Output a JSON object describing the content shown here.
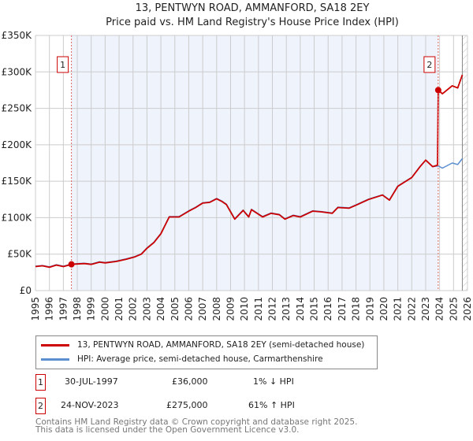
{
  "chart_data": {
    "type": "line",
    "title": "13, PENTWYN ROAD, AMMANFORD, SA18 2EY",
    "subtitle": "Price paid vs. HM Land Registry's House Price Index (HPI)",
    "xlabel": "",
    "ylabel": "",
    "xlim": [
      1995,
      2026
    ],
    "ylim": [
      0,
      350000
    ],
    "grid": true,
    "x_ticks": [
      "1995",
      "1996",
      "1997",
      "1998",
      "1999",
      "2000",
      "2001",
      "2002",
      "2003",
      "2004",
      "2005",
      "2006",
      "2007",
      "2008",
      "2009",
      "2010",
      "2011",
      "2012",
      "2013",
      "2014",
      "2015",
      "2016",
      "2017",
      "2018",
      "2019",
      "2020",
      "2021",
      "2022",
      "2023",
      "2024",
      "2025",
      "2026"
    ],
    "y_ticks": [
      {
        "v": 0,
        "label": "£0"
      },
      {
        "v": 50000,
        "label": "£50K"
      },
      {
        "v": 100000,
        "label": "£100K"
      },
      {
        "v": 150000,
        "label": "£150K"
      },
      {
        "v": 200000,
        "label": "£200K"
      },
      {
        "v": 250000,
        "label": "£250K"
      },
      {
        "v": 300000,
        "label": "£300K"
      },
      {
        "v": 350000,
        "label": "£350K"
      }
    ],
    "colors": {
      "property": "#cc0000",
      "hpi": "#5b8fd0",
      "shade": "#eef3fc",
      "grid": "#cccccc"
    },
    "shaded_range": [
      1997.58,
      2023.9
    ],
    "hatched_from": 2025.63,
    "series": [
      {
        "name": "13, PENTWYN ROAD, AMMANFORD, SA18 2EY (semi-detached house)",
        "color": "#cc0000",
        "x": [
          1995,
          1995.5,
          1996,
          1996.5,
          1997,
          1997.58,
          1998,
          1998.5,
          1999,
          1999.6,
          2000,
          2000.8,
          2001.5,
          2002.1,
          2002.6,
          2003,
          2003.5,
          2004,
          2004.6,
          2005.3,
          2006,
          2006.5,
          2007,
          2007.5,
          2008,
          2008.4,
          2008.7,
          2009.3,
          2009.9,
          2010.3,
          2010.5,
          2011.3,
          2011.9,
          2012.5,
          2012.9,
          2013.5,
          2014,
          2014.9,
          2015.5,
          2016.3,
          2016.7,
          2017.5,
          2018.1,
          2018.9,
          2019.9,
          2020.4,
          2021,
          2022,
          2022.6,
          2023,
          2023.5,
          2023.85,
          2023.9,
          2024.2,
          2024.9,
          2025.3,
          2025.63
        ],
        "y": [
          33000,
          34000,
          32000,
          35000,
          33000,
          36000,
          36500,
          37000,
          36000,
          39000,
          38000,
          40000,
          43000,
          46000,
          50000,
          58000,
          66000,
          78000,
          101000,
          101000,
          109000,
          114000,
          120000,
          121000,
          126000,
          122000,
          118000,
          98000,
          110000,
          101000,
          111000,
          101000,
          106000,
          104000,
          98000,
          103000,
          101000,
          109000,
          108000,
          106000,
          114000,
          113000,
          118000,
          125000,
          131000,
          124000,
          143000,
          155000,
          170000,
          179000,
          170000,
          172000,
          275000,
          270000,
          281000,
          278000,
          296000
        ]
      },
      {
        "name": "HPI: Average price, semi-detached house, Carmarthenshire",
        "color": "#5b8fd0",
        "x": [
          1995,
          1995.5,
          1996,
          1996.5,
          1997,
          1997.58,
          1998,
          1998.5,
          1999,
          1999.6,
          2000,
          2000.8,
          2001.5,
          2002.1,
          2002.6,
          2003,
          2003.5,
          2004,
          2004.6,
          2005.3,
          2006,
          2006.5,
          2007,
          2007.5,
          2008,
          2008.4,
          2008.7,
          2009.3,
          2009.9,
          2010.3,
          2010.5,
          2011.3,
          2011.9,
          2012.5,
          2012.9,
          2013.5,
          2014,
          2014.9,
          2015.5,
          2016.3,
          2016.7,
          2017.5,
          2018.1,
          2018.9,
          2019.9,
          2020.4,
          2021,
          2022,
          2022.6,
          2023,
          2023.5,
          2023.9,
          2024.2,
          2024.9,
          2025.3,
          2025.63
        ],
        "y": [
          33500,
          34500,
          32500,
          35500,
          33500,
          36300,
          37000,
          37500,
          36500,
          39500,
          38500,
          40500,
          43500,
          46500,
          50500,
          58500,
          66500,
          78500,
          101500,
          101500,
          109500,
          114500,
          120500,
          121500,
          126500,
          122500,
          118500,
          98500,
          110500,
          101500,
          111500,
          101500,
          106500,
          104500,
          98500,
          103500,
          101500,
          109500,
          108500,
          106500,
          114500,
          113500,
          118500,
          125500,
          131500,
          124500,
          143500,
          155500,
          170500,
          179000,
          170000,
          171000,
          168000,
          175000,
          173000,
          181000
        ]
      }
    ],
    "annotations": [
      {
        "id": "1",
        "x": 1997.58,
        "y": 36000
      },
      {
        "id": "2",
        "x": 2023.9,
        "y": 275000
      }
    ]
  },
  "legend": {
    "property": "13, PENTWYN ROAD, AMMANFORD, SA18 2EY (semi-detached house)",
    "hpi": "HPI: Average price, semi-detached house, Carmarthenshire"
  },
  "transactions": [
    {
      "num": "1",
      "date": "30-JUL-1997",
      "price": "£36,000",
      "hpi": "1% ↓ HPI"
    },
    {
      "num": "2",
      "date": "24-NOV-2023",
      "price": "£275,000",
      "hpi": "61% ↑ HPI"
    }
  ],
  "footer": {
    "line1": "Contains HM Land Registry data © Crown copyright and database right 2025.",
    "line2": "This data is licensed under the Open Government Licence v3.0."
  }
}
